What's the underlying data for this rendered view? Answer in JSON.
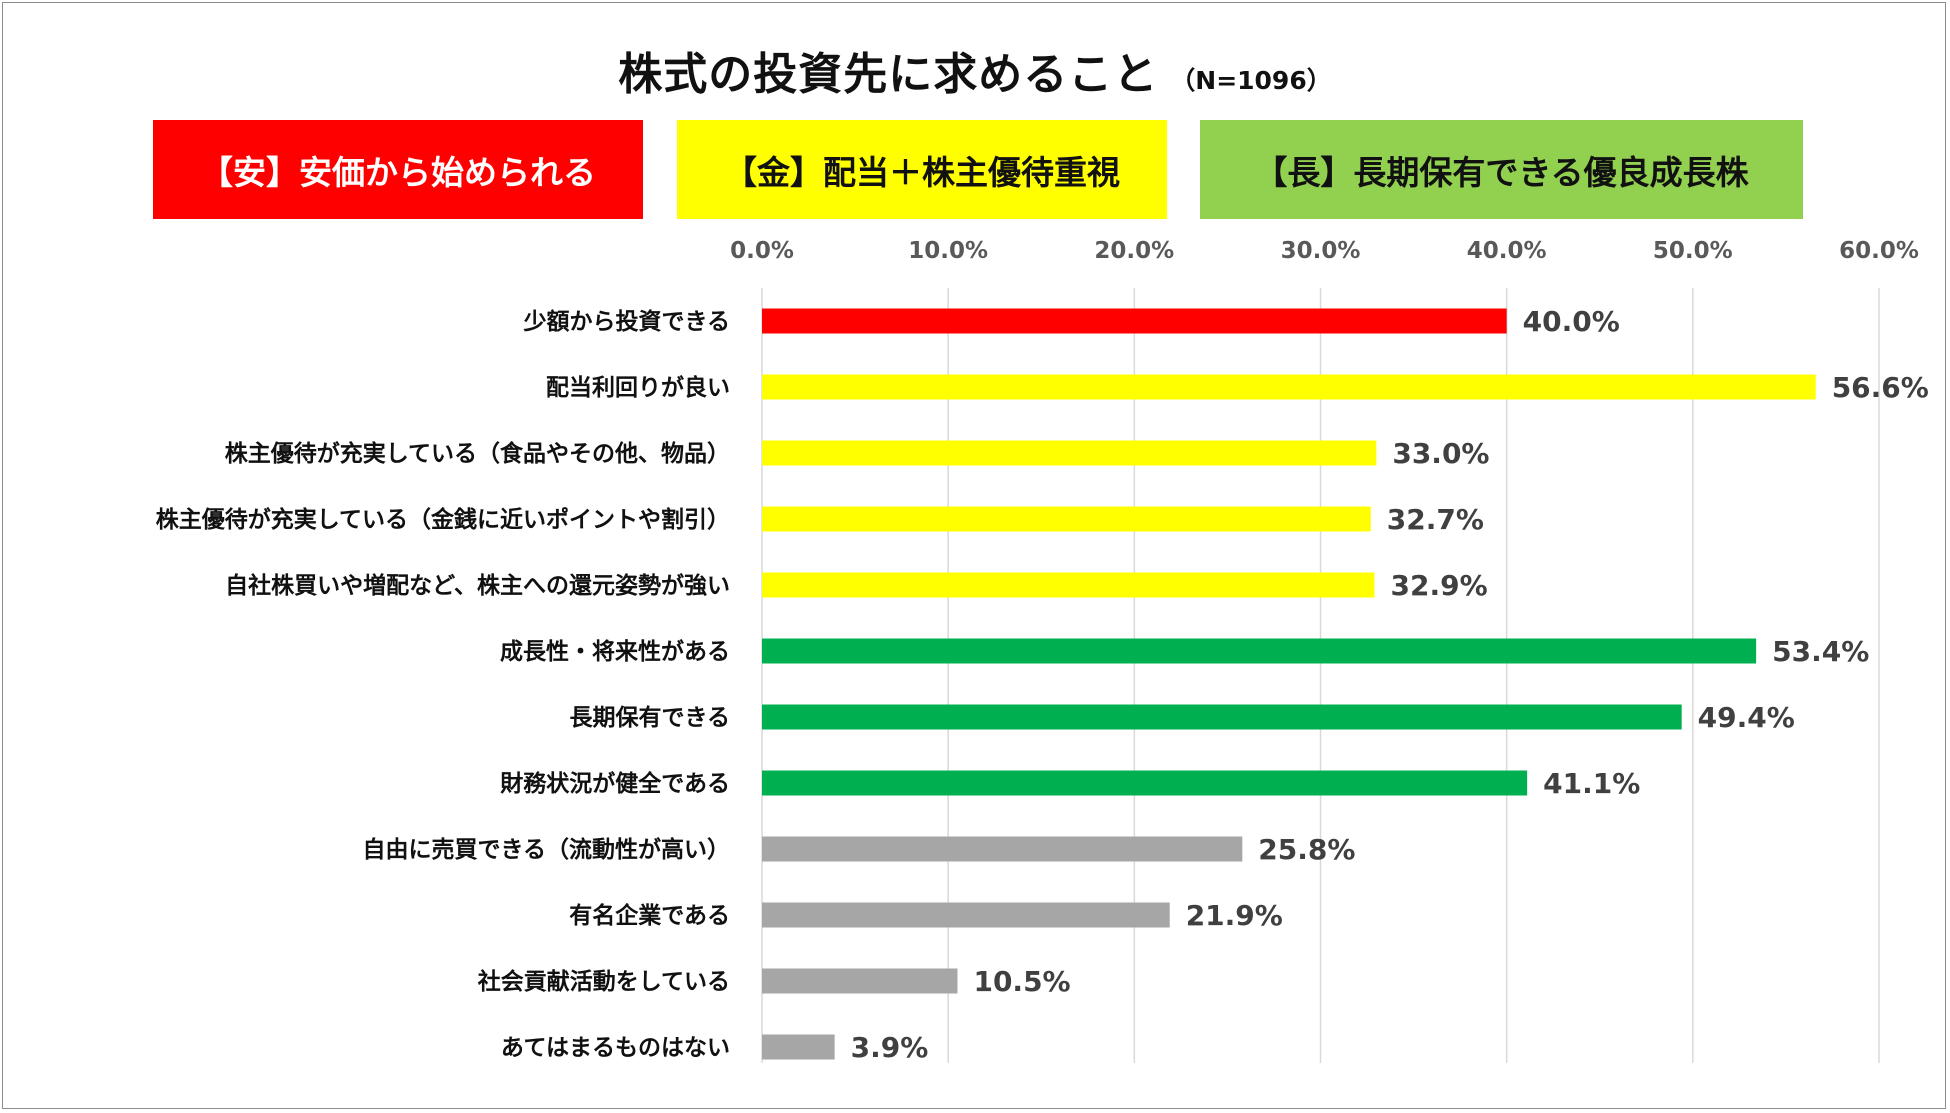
{
  "chart_data": {
    "type": "bar",
    "orientation": "horizontal",
    "title": "株式の投資先に求めること",
    "subtitle": "（N=1096）",
    "xlim": [
      0,
      60
    ],
    "ticks": [
      "0.0%",
      "10.0%",
      "20.0%",
      "30.0%",
      "40.0%",
      "50.0%",
      "60.0%"
    ],
    "tick_values": [
      0,
      10,
      20,
      30,
      40,
      50,
      60
    ],
    "grid": true,
    "legend_position": "top",
    "legend": [
      {
        "label": "【安】安価から始められる",
        "color": "#ff0000",
        "text_color": "#ffffff"
      },
      {
        "label": "【金】配当＋株主優待重視",
        "color": "#ffff00",
        "text_color": "#111111"
      },
      {
        "label": "【長】長期保有できる優良成長株",
        "color": "#92d050",
        "text_color": "#111111"
      }
    ],
    "categories": [
      "少額から投資できる",
      "配当利回りが良い",
      "株主優待が充実している（食品やその他、物品）",
      "株主優待が充実している（金銭に近いポイントや割引）",
      "自社株買いや増配など、株主への還元姿勢が強い",
      "成長性・将来性がある",
      "長期保有できる",
      "財務状況が健全である",
      "自由に売買できる（流動性が高い）",
      "有名企業である",
      "社会貢献活動をしている",
      "あてはまるものはない"
    ],
    "values": [
      40.0,
      56.6,
      33.0,
      32.7,
      32.9,
      53.4,
      49.4,
      41.1,
      25.8,
      21.9,
      10.5,
      3.9
    ],
    "value_labels": [
      "40.0%",
      "56.6%",
      "33.0%",
      "32.7%",
      "32.9%",
      "53.4%",
      "49.4%",
      "41.1%",
      "25.8%",
      "21.9%",
      "10.5%",
      "3.9%"
    ],
    "bar_colors": [
      "#ff0000",
      "#ffff00",
      "#ffff00",
      "#ffff00",
      "#ffff00",
      "#00b050",
      "#00b050",
      "#00b050",
      "#a6a6a6",
      "#a6a6a6",
      "#a6a6a6",
      "#a6a6a6"
    ]
  }
}
